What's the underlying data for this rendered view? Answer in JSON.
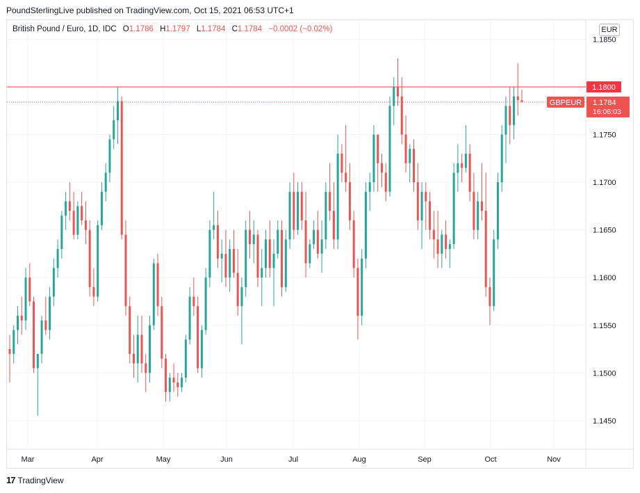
{
  "header": {
    "published_line": "PoundSterlingLive published on TradingView.com, Oct 15, 2021 06:53 UTC+1"
  },
  "legend": {
    "symbol": "British Pound / Euro, 1D, IDC",
    "open_label": "O",
    "open": "1.1786",
    "high_label": "H",
    "high": "1.1797",
    "low_label": "L",
    "low": "1.1784",
    "close_label": "C",
    "close": "1.1784",
    "change": "−0.0002 (−0.02%)"
  },
  "currency_button": "EUR",
  "price_tags": {
    "level_line": "1.1800",
    "symbol_tag": "GBPEUR",
    "last_price": "1.1784",
    "countdown": "16:06:03"
  },
  "footer": {
    "logo_mark": "17",
    "brand": "TradingView"
  },
  "colors": {
    "up": "#26a69a",
    "down": "#ef5350",
    "line": "#f23645",
    "grid": "#f0f3fa",
    "axis_text": "#131722"
  },
  "chart_data": {
    "type": "candlestick",
    "title": "British Pound / Euro, 1D, IDC",
    "ylim": [
      1.142,
      1.187
    ],
    "y_ticks": [
      "1.1850",
      "1.1800",
      "1.1750",
      "1.1700",
      "1.1650",
      "1.1600",
      "1.1550",
      "1.1500",
      "1.1450"
    ],
    "x_ticks": [
      "Mar",
      "Apr",
      "May",
      "Jun",
      "Jul",
      "Aug",
      "Sep",
      "Oct",
      "Nov"
    ],
    "horizontal_line": 1.18,
    "last_close": 1.1784,
    "grid": true,
    "series": [
      {
        "name": "GBPEUR",
        "values": [
          [
            1.1525,
            1.154,
            1.149,
            1.152
          ],
          [
            1.152,
            1.155,
            1.151,
            1.1545
          ],
          [
            1.1545,
            1.157,
            1.153,
            1.156
          ],
          [
            1.156,
            1.158,
            1.154,
            1.1555
          ],
          [
            1.1555,
            1.161,
            1.1545,
            1.16
          ],
          [
            1.16,
            1.1615,
            1.157,
            1.1575
          ],
          [
            1.1575,
            1.158,
            1.15,
            1.1505
          ],
          [
            1.1505,
            1.152,
            1.1455,
            1.152
          ],
          [
            1.152,
            1.156,
            1.151,
            1.1555
          ],
          [
            1.1555,
            1.158,
            1.154,
            1.1545
          ],
          [
            1.1545,
            1.159,
            1.1535,
            1.158
          ],
          [
            1.158,
            1.162,
            1.157,
            1.161
          ],
          [
            1.161,
            1.164,
            1.16,
            1.163
          ],
          [
            1.163,
            1.167,
            1.162,
            1.1665
          ],
          [
            1.1665,
            1.169,
            1.165,
            1.168
          ],
          [
            1.168,
            1.17,
            1.166,
            1.167
          ],
          [
            1.167,
            1.169,
            1.164,
            1.1645
          ],
          [
            1.1645,
            1.168,
            1.164,
            1.1675
          ],
          [
            1.1675,
            1.169,
            1.1655,
            1.166
          ],
          [
            1.166,
            1.168,
            1.1635,
            1.165
          ],
          [
            1.165,
            1.166,
            1.158,
            1.159
          ],
          [
            1.159,
            1.161,
            1.157,
            1.158
          ],
          [
            1.158,
            1.166,
            1.1575,
            1.1655
          ],
          [
            1.1655,
            1.17,
            1.165,
            1.169
          ],
          [
            1.169,
            1.172,
            1.168,
            1.171
          ],
          [
            1.171,
            1.175,
            1.17,
            1.1745
          ],
          [
            1.1745,
            1.178,
            1.1735,
            1.1765
          ],
          [
            1.1765,
            1.18,
            1.174,
            1.1785
          ],
          [
            1.1785,
            1.179,
            1.164,
            1.1645
          ],
          [
            1.1645,
            1.166,
            1.156,
            1.157
          ],
          [
            1.157,
            1.158,
            1.151,
            1.152
          ],
          [
            1.152,
            1.154,
            1.1495,
            1.151
          ],
          [
            1.151,
            1.156,
            1.149,
            1.154
          ],
          [
            1.154,
            1.156,
            1.15,
            1.151
          ],
          [
            1.151,
            1.152,
            1.148,
            1.15
          ],
          [
            1.15,
            1.156,
            1.149,
            1.155
          ],
          [
            1.155,
            1.162,
            1.1545,
            1.1615
          ],
          [
            1.1615,
            1.1625,
            1.156,
            1.157
          ],
          [
            1.157,
            1.158,
            1.1505,
            1.1515
          ],
          [
            1.1515,
            1.152,
            1.147,
            1.148
          ],
          [
            1.148,
            1.15,
            1.147,
            1.1495
          ],
          [
            1.1495,
            1.151,
            1.148,
            1.149
          ],
          [
            1.149,
            1.15,
            1.1475,
            1.1485
          ],
          [
            1.1485,
            1.15,
            1.148,
            1.1495
          ],
          [
            1.1495,
            1.154,
            1.149,
            1.1535
          ],
          [
            1.1535,
            1.159,
            1.153,
            1.158
          ],
          [
            1.158,
            1.16,
            1.156,
            1.157
          ],
          [
            1.157,
            1.158,
            1.15,
            1.1505
          ],
          [
            1.1505,
            1.155,
            1.1495,
            1.1545
          ],
          [
            1.1545,
            1.161,
            1.154,
            1.16
          ],
          [
            1.16,
            1.166,
            1.159,
            1.165
          ],
          [
            1.165,
            1.169,
            1.164,
            1.1655
          ],
          [
            1.1655,
            1.167,
            1.161,
            1.162
          ],
          [
            1.162,
            1.164,
            1.1595,
            1.1625
          ],
          [
            1.1625,
            1.165,
            1.159,
            1.16
          ],
          [
            1.16,
            1.164,
            1.1585,
            1.163
          ],
          [
            1.163,
            1.165,
            1.16,
            1.1605
          ],
          [
            1.1605,
            1.163,
            1.156,
            1.157
          ],
          [
            1.157,
            1.16,
            1.153,
            1.159
          ],
          [
            1.159,
            1.166,
            1.158,
            1.165
          ],
          [
            1.165,
            1.167,
            1.162,
            1.1635
          ],
          [
            1.1635,
            1.166,
            1.1615,
            1.1645
          ],
          [
            1.1645,
            1.165,
            1.159,
            1.16
          ],
          [
            1.16,
            1.163,
            1.157,
            1.161
          ],
          [
            1.161,
            1.165,
            1.16,
            1.164
          ],
          [
            1.164,
            1.166,
            1.16,
            1.161
          ],
          [
            1.161,
            1.164,
            1.157,
            1.1625
          ],
          [
            1.1625,
            1.166,
            1.162,
            1.165
          ],
          [
            1.165,
            1.166,
            1.158,
            1.159
          ],
          [
            1.159,
            1.165,
            1.1585,
            1.164
          ],
          [
            1.164,
            1.17,
            1.163,
            1.169
          ],
          [
            1.169,
            1.171,
            1.164,
            1.165
          ],
          [
            1.165,
            1.17,
            1.1645,
            1.169
          ],
          [
            1.169,
            1.17,
            1.165,
            1.166
          ],
          [
            1.166,
            1.169,
            1.16,
            1.1615
          ],
          [
            1.1615,
            1.164,
            1.161,
            1.1635
          ],
          [
            1.1635,
            1.166,
            1.163,
            1.165
          ],
          [
            1.165,
            1.167,
            1.162,
            1.1625
          ],
          [
            1.1625,
            1.166,
            1.1605,
            1.164
          ],
          [
            1.164,
            1.17,
            1.163,
            1.169
          ],
          [
            1.169,
            1.172,
            1.166,
            1.167
          ],
          [
            1.167,
            1.17,
            1.163,
            1.164
          ],
          [
            1.164,
            1.175,
            1.163,
            1.173
          ],
          [
            1.173,
            1.174,
            1.17,
            1.171
          ],
          [
            1.171,
            1.176,
            1.169,
            1.17
          ],
          [
            1.17,
            1.172,
            1.165,
            1.166
          ],
          [
            1.166,
            1.167,
            1.16,
            1.161
          ],
          [
            1.161,
            1.162,
            1.1535,
            1.156
          ],
          [
            1.156,
            1.163,
            1.155,
            1.162
          ],
          [
            1.162,
            1.17,
            1.161,
            1.169
          ],
          [
            1.169,
            1.171,
            1.167,
            1.17
          ],
          [
            1.17,
            1.176,
            1.169,
            1.175
          ],
          [
            1.175,
            1.174,
            1.169,
            1.172
          ],
          [
            1.172,
            1.173,
            1.1695,
            1.171
          ],
          [
            1.171,
            1.172,
            1.168,
            1.169
          ],
          [
            1.169,
            1.179,
            1.1685,
            1.178
          ],
          [
            1.178,
            1.181,
            1.176,
            1.18
          ],
          [
            1.18,
            1.183,
            1.178,
            1.179
          ],
          [
            1.179,
            1.181,
            1.174,
            1.175
          ],
          [
            1.175,
            1.177,
            1.171,
            1.172
          ],
          [
            1.172,
            1.174,
            1.17,
            1.1735
          ],
          [
            1.1735,
            1.1745,
            1.169,
            1.17
          ],
          [
            1.17,
            1.172,
            1.165,
            1.166
          ],
          [
            1.166,
            1.17,
            1.163,
            1.169
          ],
          [
            1.169,
            1.17,
            1.165,
            1.168
          ],
          [
            1.168,
            1.169,
            1.164,
            1.165
          ],
          [
            1.165,
            1.167,
            1.162,
            1.164
          ],
          [
            1.164,
            1.167,
            1.161,
            1.1625
          ],
          [
            1.1625,
            1.165,
            1.161,
            1.1645
          ],
          [
            1.1645,
            1.166,
            1.162,
            1.163
          ],
          [
            1.163,
            1.164,
            1.161,
            1.1635
          ],
          [
            1.1635,
            1.172,
            1.163,
            1.171
          ],
          [
            1.171,
            1.174,
            1.169,
            1.172
          ],
          [
            1.172,
            1.173,
            1.17,
            1.1715
          ],
          [
            1.1715,
            1.176,
            1.171,
            1.173
          ],
          [
            1.173,
            1.174,
            1.168,
            1.169
          ],
          [
            1.169,
            1.171,
            1.164,
            1.165
          ],
          [
            1.165,
            1.169,
            1.164,
            1.168
          ],
          [
            1.168,
            1.172,
            1.166,
            1.167
          ],
          [
            1.167,
            1.171,
            1.158,
            1.159
          ],
          [
            1.159,
            1.16,
            1.155,
            1.157
          ],
          [
            1.157,
            1.165,
            1.1565,
            1.164
          ],
          [
            1.164,
            1.171,
            1.163,
            1.17
          ],
          [
            1.17,
            1.176,
            1.169,
            1.175
          ],
          [
            1.175,
            1.179,
            1.172,
            1.178
          ],
          [
            1.178,
            1.18,
            1.174,
            1.176
          ],
          [
            1.176,
            1.18,
            1.1745,
            1.179
          ],
          [
            1.179,
            1.1825,
            1.177,
            1.1786
          ],
          [
            1.1786,
            1.1797,
            1.1784,
            1.1784
          ]
        ]
      }
    ]
  }
}
